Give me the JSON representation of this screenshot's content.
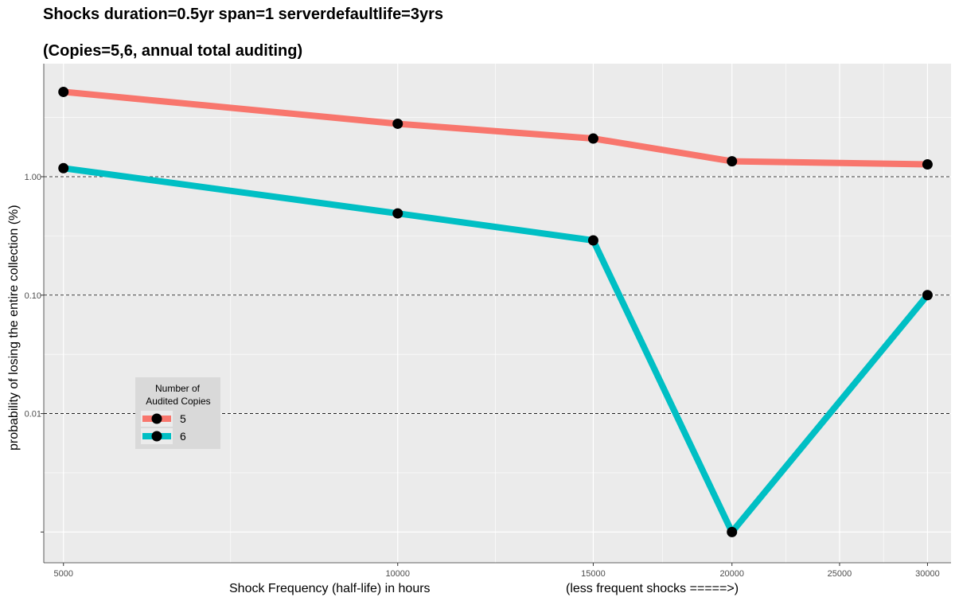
{
  "chart_data": {
    "type": "line",
    "title": "Shocks duration=0.5yr span=1 serverdefaultlife=3yrs",
    "subtitle": "(Copies=5,6, annual total auditing)",
    "xlabel": "Shock Frequency (half-life) in hours",
    "xlabel_note": "(less frequent shocks =====>)",
    "ylabel": "probability of losing the entire collection (%)",
    "x_scale": "log",
    "y_scale": "log",
    "xlim": [
      4800,
      31500
    ],
    "ylim": [
      0.00055,
      9
    ],
    "x_ticks": [
      5000,
      10000,
      15000,
      20000,
      25000,
      30000
    ],
    "x_tick_labels": [
      "5000",
      "10000",
      "15000",
      "20000",
      "25000",
      "30000"
    ],
    "y_ticks": [
      0.01,
      0.1,
      1.0
    ],
    "y_tick_labels": [
      "0.01",
      "0.10",
      "1.00"
    ],
    "reference_lines": [
      0.01,
      0.1,
      1.0
    ],
    "x": [
      5000,
      10000,
      15000,
      20000,
      30000
    ],
    "series": [
      {
        "name": "5",
        "color": "#F8766D",
        "values": [
          5.2,
          2.8,
          2.1,
          1.35,
          1.27
        ]
      },
      {
        "name": "6",
        "color": "#00BFC4",
        "values": [
          1.18,
          0.49,
          0.29,
          0.001,
          0.1
        ]
      }
    ],
    "legend": {
      "title_line1": "Number of",
      "title_line2": "Audited Copies",
      "position": "lower-left"
    },
    "panel_background": "#EBEBEB",
    "grid": true
  }
}
